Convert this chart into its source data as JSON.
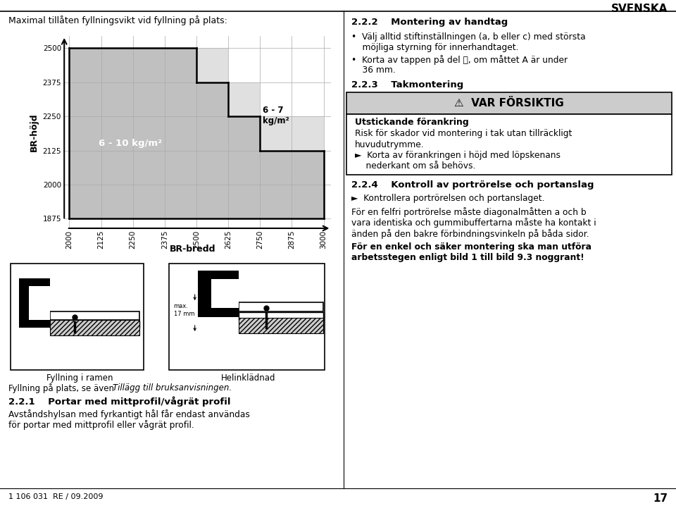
{
  "bg_color": "#ffffff",
  "title": "Maximal tillåten fyllningsvikt vid fyllning på plats:",
  "ylabel": "BR-höjd",
  "xlabel": "BR-bredd",
  "y_ticks": [
    1875,
    2000,
    2125,
    2250,
    2375,
    2500
  ],
  "x_ticks": [
    2000,
    2125,
    2250,
    2375,
    2500,
    2625,
    2750,
    2875,
    3000
  ],
  "label_610": "6 - 10 kg/m²",
  "label_67": "6 - 7\nkg/m²",
  "svenska": "SVENSKA",
  "sec222_title": "2.2.2    Montering av handtag",
  "bullet1_line1": "•  Välj alltid stiftinställningen (a, b eller c) med största",
  "bullet1_line2": "    möjliga styrning för innerhandtaget.",
  "bullet2_line1": "•  Korta av tappen på del Ⓞ, om måttet A är under",
  "bullet2_line2": "    36 mm.",
  "sec223_title": "2.2.3    Takmontering",
  "var_forsiktig": "⚠  VAR FÖRSIKTIG",
  "caution_title": "Utstickande förankring",
  "caution_line1": "Risk för skador vid montering i tak utan tillräckligt",
  "caution_line2": "huvudutrymme.",
  "caution_bullet1": "►  Korta av förankringen i höjd med löpskenans",
  "caution_bullet2": "    nederkant om så behövs.",
  "sec224_title": "2.2.4    Kontroll av portrörelse och portanslag",
  "sec224_bullet": "►  Kontrollera portrörelsen och portanslaget.",
  "sec224_line1": "För en felfri portrörelse måste diagonalmåtten a och b",
  "sec224_line2": "vara identiska och gummibuffertarna måste ha kontakt i",
  "sec224_line3": "änden på den bakre förbindningsvinkeln på båda sidor.",
  "sec224_bold1": "För en enkel och säker montering ska man utföra",
  "sec224_bold2": "arbetsstegen enligt bild 1 till bild 9.3 noggrant!",
  "footnote": "1 106 031  RE / 09.2009",
  "page_num": "17",
  "fill_ramen": "Fyllning i ramen",
  "helinkl": "Helinklädnad",
  "fill_plats_normal": "Fyllning på plats, se även ",
  "fill_plats_italic": "Tillägg till bruksanvisningen.",
  "sec221_title": "2.2.1    Portar med mittprofil/vågrät profil",
  "sec221_line1": "Avståndshylsan med fyrkantigt hål får endast användas",
  "sec221_line2": "för portar med mittprofil eller vågrät profil.",
  "grid_color": "#aaaaaa",
  "fill_color_main": "#c0c0c0",
  "fill_color_top": "#e0e0e0",
  "max_17_mm": "max.\n17 mm"
}
